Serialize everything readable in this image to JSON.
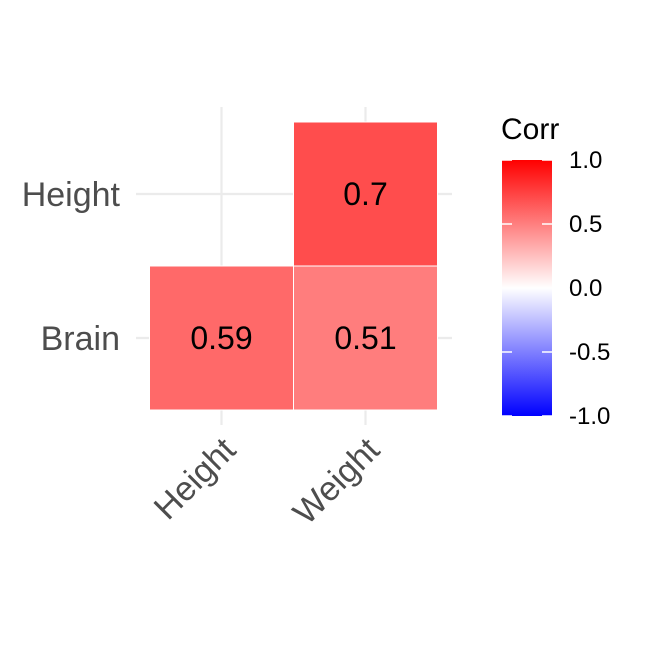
{
  "chart_data": {
    "type": "heatmap",
    "x_categories": [
      "Height",
      "Weight"
    ],
    "y_categories": [
      "Brain",
      "Height"
    ],
    "cells": [
      {
        "x": "Height",
        "y": "Brain",
        "value": 0.59,
        "label": "0.59"
      },
      {
        "x": "Weight",
        "y": "Brain",
        "value": 0.51,
        "label": "0.51"
      },
      {
        "x": "Weight",
        "y": "Height",
        "value": 0.7,
        "label": "0.7"
      }
    ],
    "legend": {
      "title": "Corr",
      "ticks": [
        {
          "value": 1.0,
          "label": "1.0"
        },
        {
          "value": 0.5,
          "label": "0.5"
        },
        {
          "value": 0.0,
          "label": "0.0"
        },
        {
          "value": -0.5,
          "label": "-0.5"
        },
        {
          "value": -1.0,
          "label": "-1.0"
        }
      ],
      "range": [
        -1,
        1
      ],
      "position": "right"
    },
    "colors": {
      "low": "#0000ff",
      "mid": "#ffffff",
      "high": "#ff0000"
    },
    "grid": true
  }
}
